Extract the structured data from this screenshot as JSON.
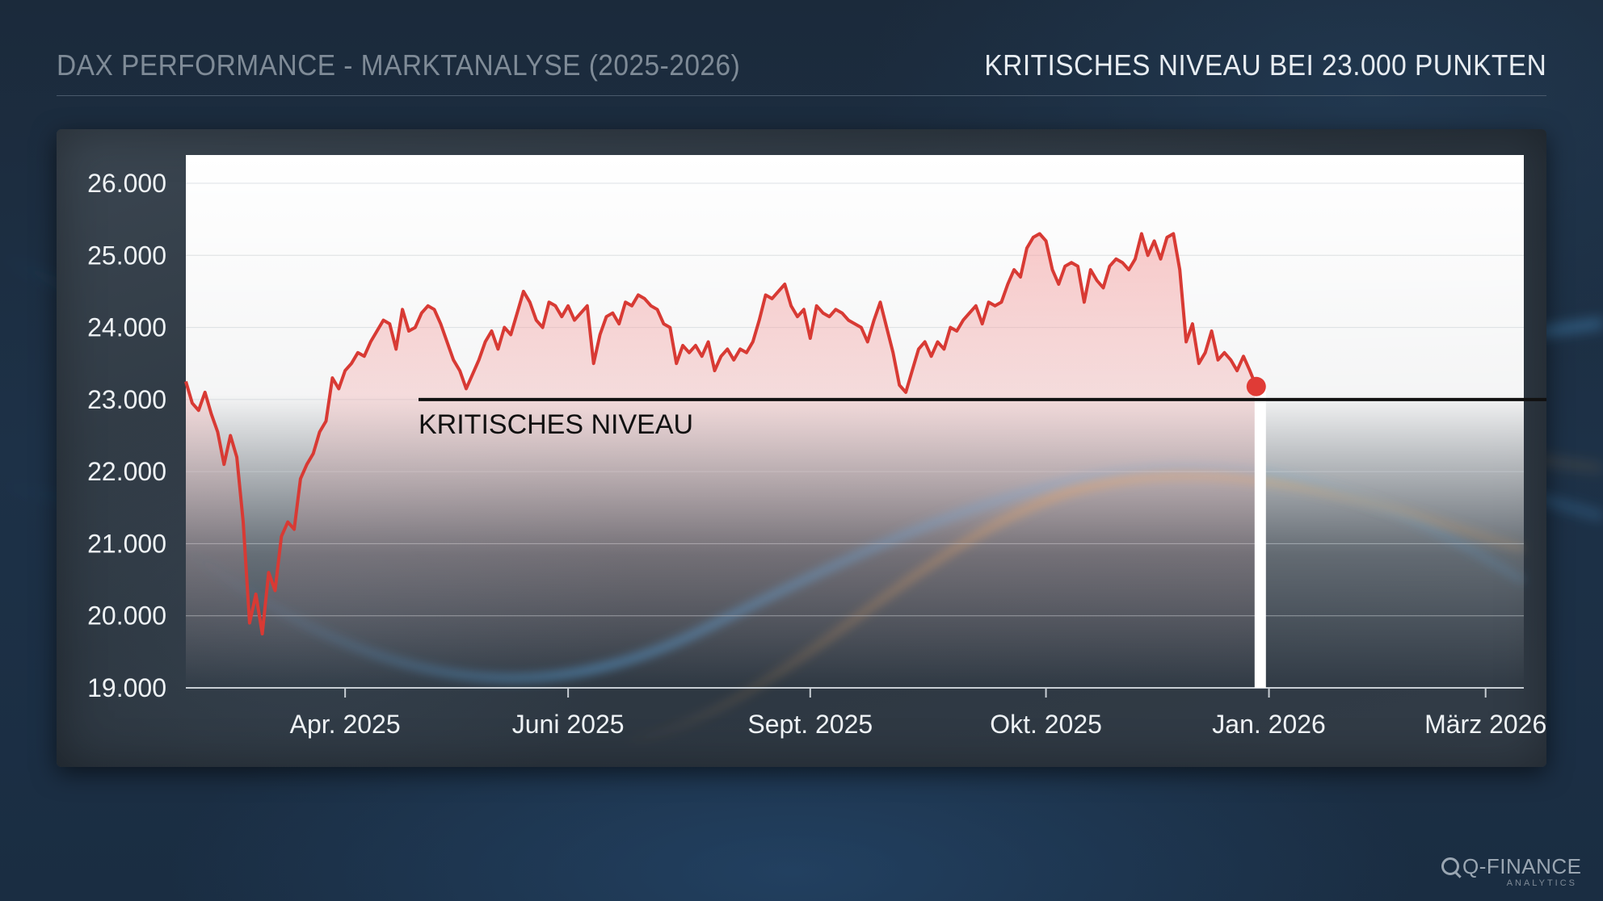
{
  "header": {
    "title": "DAX PERFORMANCE - MARKTANALYSE (2025-2026)",
    "subtitle": "KRITISCHES NIVEAU BEI 23.000 PUNKTEN"
  },
  "brand": {
    "name": "Q-FINANCE",
    "tagline": "ANALYTICS"
  },
  "colors": {
    "line": "#d83a34",
    "fill": "#f4a0a0",
    "threshold": "#111111",
    "marker": "#e03b36"
  },
  "chart_data": {
    "type": "line",
    "title": "",
    "xlabel": "",
    "ylabel": "",
    "ylim": [
      19000,
      26000
    ],
    "y_ticks": [
      {
        "value": 26000,
        "label": "26.000"
      },
      {
        "value": 25000,
        "label": "25.000"
      },
      {
        "value": 24000,
        "label": "24.000"
      },
      {
        "value": 23000,
        "label": "23.000"
      },
      {
        "value": 22000,
        "label": "22.000"
      },
      {
        "value": 21000,
        "label": "21.000"
      },
      {
        "value": 20000,
        "label": "20.000"
      },
      {
        "value": 19000,
        "label": "19.000"
      }
    ],
    "x_ticks": [
      {
        "x": 25,
        "label": "Apr. 2025"
      },
      {
        "x": 60,
        "label": "Juni 2025"
      },
      {
        "x": 98,
        "label": "Sept. 2025"
      },
      {
        "x": 135,
        "label": "Okt. 2025"
      },
      {
        "x": 170,
        "label": "Jan. 2026"
      },
      {
        "x": 204,
        "label": "März 2026"
      }
    ],
    "grid": true,
    "series": [
      {
        "values": [
          [
            0,
            23250
          ],
          [
            1,
            22950
          ],
          [
            2,
            22850
          ],
          [
            3,
            23100
          ],
          [
            4,
            22800
          ],
          [
            5,
            22550
          ],
          [
            6,
            22100
          ],
          [
            7,
            22500
          ],
          [
            8,
            22200
          ],
          [
            9,
            21300
          ],
          [
            10,
            19900
          ],
          [
            11,
            20300
          ],
          [
            12,
            19750
          ],
          [
            13,
            20600
          ],
          [
            14,
            20350
          ],
          [
            15,
            21100
          ],
          [
            16,
            21300
          ],
          [
            17,
            21200
          ],
          [
            18,
            21900
          ],
          [
            19,
            22100
          ],
          [
            20,
            22250
          ],
          [
            21,
            22550
          ],
          [
            22,
            22700
          ],
          [
            23,
            23300
          ],
          [
            24,
            23150
          ],
          [
            25,
            23400
          ],
          [
            26,
            23500
          ],
          [
            27,
            23650
          ],
          [
            28,
            23600
          ],
          [
            29,
            23800
          ],
          [
            30,
            23950
          ],
          [
            31,
            24100
          ],
          [
            32,
            24050
          ],
          [
            33,
            23700
          ],
          [
            34,
            24250
          ],
          [
            35,
            23950
          ],
          [
            36,
            24000
          ],
          [
            37,
            24200
          ],
          [
            38,
            24300
          ],
          [
            39,
            24250
          ],
          [
            40,
            24050
          ],
          [
            41,
            23800
          ],
          [
            42,
            23550
          ],
          [
            43,
            23400
          ],
          [
            44,
            23150
          ],
          [
            45,
            23350
          ],
          [
            46,
            23550
          ],
          [
            47,
            23800
          ],
          [
            48,
            23950
          ],
          [
            49,
            23700
          ],
          [
            50,
            24000
          ],
          [
            51,
            23900
          ],
          [
            52,
            24200
          ],
          [
            53,
            24500
          ],
          [
            54,
            24350
          ],
          [
            55,
            24100
          ],
          [
            56,
            24000
          ],
          [
            57,
            24350
          ],
          [
            58,
            24300
          ],
          [
            59,
            24150
          ],
          [
            60,
            24300
          ],
          [
            61,
            24100
          ],
          [
            62,
            24200
          ],
          [
            63,
            24300
          ],
          [
            64,
            23500
          ],
          [
            65,
            23900
          ],
          [
            66,
            24150
          ],
          [
            67,
            24200
          ],
          [
            68,
            24050
          ],
          [
            69,
            24350
          ],
          [
            70,
            24300
          ],
          [
            71,
            24450
          ],
          [
            72,
            24400
          ],
          [
            73,
            24300
          ],
          [
            74,
            24250
          ],
          [
            75,
            24050
          ],
          [
            76,
            24000
          ],
          [
            77,
            23500
          ],
          [
            78,
            23750
          ],
          [
            79,
            23650
          ],
          [
            80,
            23750
          ],
          [
            81,
            23600
          ],
          [
            82,
            23800
          ],
          [
            83,
            23400
          ],
          [
            84,
            23600
          ],
          [
            85,
            23700
          ],
          [
            86,
            23550
          ],
          [
            87,
            23700
          ],
          [
            88,
            23650
          ],
          [
            89,
            23800
          ],
          [
            90,
            24100
          ],
          [
            91,
            24450
          ],
          [
            92,
            24400
          ],
          [
            93,
            24500
          ],
          [
            94,
            24600
          ],
          [
            95,
            24300
          ],
          [
            96,
            24150
          ],
          [
            97,
            24250
          ],
          [
            98,
            23850
          ],
          [
            99,
            24300
          ],
          [
            100,
            24200
          ],
          [
            101,
            24150
          ],
          [
            102,
            24250
          ],
          [
            103,
            24200
          ],
          [
            104,
            24100
          ],
          [
            105,
            24050
          ],
          [
            106,
            24000
          ],
          [
            107,
            23800
          ],
          [
            108,
            24100
          ],
          [
            109,
            24350
          ],
          [
            110,
            24000
          ],
          [
            111,
            23650
          ],
          [
            112,
            23200
          ],
          [
            113,
            23100
          ],
          [
            114,
            23400
          ],
          [
            115,
            23700
          ],
          [
            116,
            23800
          ],
          [
            117,
            23600
          ],
          [
            118,
            23800
          ],
          [
            119,
            23700
          ],
          [
            120,
            24000
          ],
          [
            121,
            23950
          ],
          [
            122,
            24100
          ],
          [
            123,
            24200
          ],
          [
            124,
            24300
          ],
          [
            125,
            24050
          ],
          [
            126,
            24350
          ],
          [
            127,
            24300
          ],
          [
            128,
            24350
          ],
          [
            129,
            24600
          ],
          [
            130,
            24800
          ],
          [
            131,
            24700
          ],
          [
            132,
            25100
          ],
          [
            133,
            25250
          ],
          [
            134,
            25300
          ],
          [
            135,
            25200
          ],
          [
            136,
            24800
          ],
          [
            137,
            24600
          ],
          [
            138,
            24850
          ],
          [
            139,
            24900
          ],
          [
            140,
            24850
          ],
          [
            141,
            24350
          ],
          [
            142,
            24800
          ],
          [
            143,
            24650
          ],
          [
            144,
            24550
          ],
          [
            145,
            24850
          ],
          [
            146,
            24950
          ],
          [
            147,
            24900
          ],
          [
            148,
            24800
          ],
          [
            149,
            24950
          ],
          [
            150,
            25300
          ],
          [
            151,
            25000
          ],
          [
            152,
            25200
          ],
          [
            153,
            24950
          ],
          [
            154,
            25250
          ],
          [
            155,
            25300
          ],
          [
            156,
            24800
          ],
          [
            157,
            23800
          ],
          [
            158,
            24050
          ],
          [
            159,
            23500
          ],
          [
            160,
            23650
          ],
          [
            161,
            23950
          ],
          [
            162,
            23550
          ],
          [
            163,
            23650
          ],
          [
            164,
            23550
          ],
          [
            165,
            23400
          ],
          [
            166,
            23600
          ],
          [
            167,
            23400
          ],
          [
            168,
            23180
          ]
        ],
        "x_domain": [
          0,
          210
        ]
      }
    ],
    "threshold": {
      "value": 23000,
      "label": "KRITISCHES NIVEAU"
    },
    "current_marker": {
      "value": 23180
    }
  }
}
